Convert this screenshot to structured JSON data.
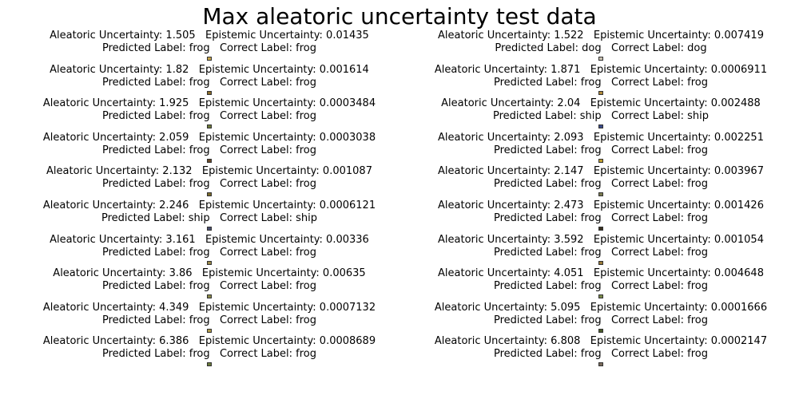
{
  "title": "Max aleatoric uncertainty test data",
  "colors": {
    "frog_thumb": "#7b6a2e",
    "ship_thumb": "#3b4a7a",
    "dog_thumb": "#b8b0a0"
  },
  "left": [
    {
      "line1": "Aleatoric Uncertainty: 1.505   Epistemic Uncertainty: 0.01435",
      "line2": "Predicted Label: frog   Correct Label: frog",
      "thumb_color": "#c7a54a"
    },
    {
      "line1": "Aleatoric Uncertainty: 1.82   Epistemic Uncertainty: 0.001614",
      "line2": "Predicted Label: frog   Correct Label: frog",
      "thumb_color": "#8a6d2a"
    },
    {
      "line1": "Aleatoric Uncertainty: 1.925   Epistemic Uncertainty: 0.0003484",
      "line2": "Predicted Label: frog   Correct Label: frog",
      "thumb_color": "#6d7a3a"
    },
    {
      "line1": "Aleatoric Uncertainty: 2.059   Epistemic Uncertainty: 0.0003038",
      "line2": "Predicted Label: frog   Correct Label: frog",
      "thumb_color": "#6a4a2a"
    },
    {
      "line1": "Aleatoric Uncertainty: 2.132   Epistemic Uncertainty: 0.001087",
      "line2": "Predicted Label: frog   Correct Label: frog",
      "thumb_color": "#7a6a2a"
    },
    {
      "line1": "Aleatoric Uncertainty: 2.246   Epistemic Uncertainty: 0.0006121",
      "line2": "Predicted Label: ship   Correct Label: ship",
      "thumb_color": "#4a5070"
    },
    {
      "line1": "Aleatoric Uncertainty: 3.161   Epistemic Uncertainty: 0.00336",
      "line2": "Predicted Label: frog   Correct Label: frog",
      "thumb_color": "#9a8a4a"
    },
    {
      "line1": "Aleatoric Uncertainty: 3.86   Epistemic Uncertainty: 0.00635",
      "line2": "Predicted Label: frog   Correct Label: frog",
      "thumb_color": "#8a8a4a"
    },
    {
      "line1": "Aleatoric Uncertainty: 4.349   Epistemic Uncertainty: 0.0007132",
      "line2": "Predicted Label: frog   Correct Label: frog",
      "thumb_color": "#b09a4a"
    },
    {
      "line1": "Aleatoric Uncertainty: 6.386   Epistemic Uncertainty: 0.0008689",
      "line2": "Predicted Label: frog   Correct Label: frog",
      "thumb_color": "#6a7a3a"
    }
  ],
  "right": [
    {
      "line1": "Aleatoric Uncertainty: 1.522   Epistemic Uncertainty: 0.007419",
      "line2": "Predicted Label: dog   Correct Label: dog",
      "thumb_color": "#c8c0b0"
    },
    {
      "line1": "Aleatoric Uncertainty: 1.871   Epistemic Uncertainty: 0.0006911",
      "line2": "Predicted Label: frog   Correct Label: frog",
      "thumb_color": "#b08a3a"
    },
    {
      "line1": "Aleatoric Uncertainty: 2.04   Epistemic Uncertainty: 0.002488",
      "line2": "Predicted Label: ship   Correct Label: ship",
      "thumb_color": "#3a4a8a"
    },
    {
      "line1": "Aleatoric Uncertainty: 2.093   Epistemic Uncertainty: 0.002251",
      "line2": "Predicted Label: frog   Correct Label: frog",
      "thumb_color": "#c0a030"
    },
    {
      "line1": "Aleatoric Uncertainty: 2.147   Epistemic Uncertainty: 0.003967",
      "line2": "Predicted Label: frog   Correct Label: frog",
      "thumb_color": "#7a7a50"
    },
    {
      "line1": "Aleatoric Uncertainty: 2.473   Epistemic Uncertainty: 0.001426",
      "line2": "Predicted Label: frog   Correct Label: frog",
      "thumb_color": "#3a3020"
    },
    {
      "line1": "Aleatoric Uncertainty: 3.592   Epistemic Uncertainty: 0.001054",
      "line2": "Predicted Label: frog   Correct Label: frog",
      "thumb_color": "#9a7a3a"
    },
    {
      "line1": "Aleatoric Uncertainty: 4.051   Epistemic Uncertainty: 0.004648",
      "line2": "Predicted Label: frog   Correct Label: frog",
      "thumb_color": "#7a8a4a"
    },
    {
      "line1": "Aleatoric Uncertainty: 5.095   Epistemic Uncertainty: 0.0001666",
      "line2": "Predicted Label: frog   Correct Label: frog",
      "thumb_color": "#4a5a2a"
    },
    {
      "line1": "Aleatoric Uncertainty: 6.808   Epistemic Uncertainty: 0.0002147",
      "line2": "Predicted Label: frog   Correct Label: frog",
      "thumb_color": "#7a6a5a"
    }
  ]
}
